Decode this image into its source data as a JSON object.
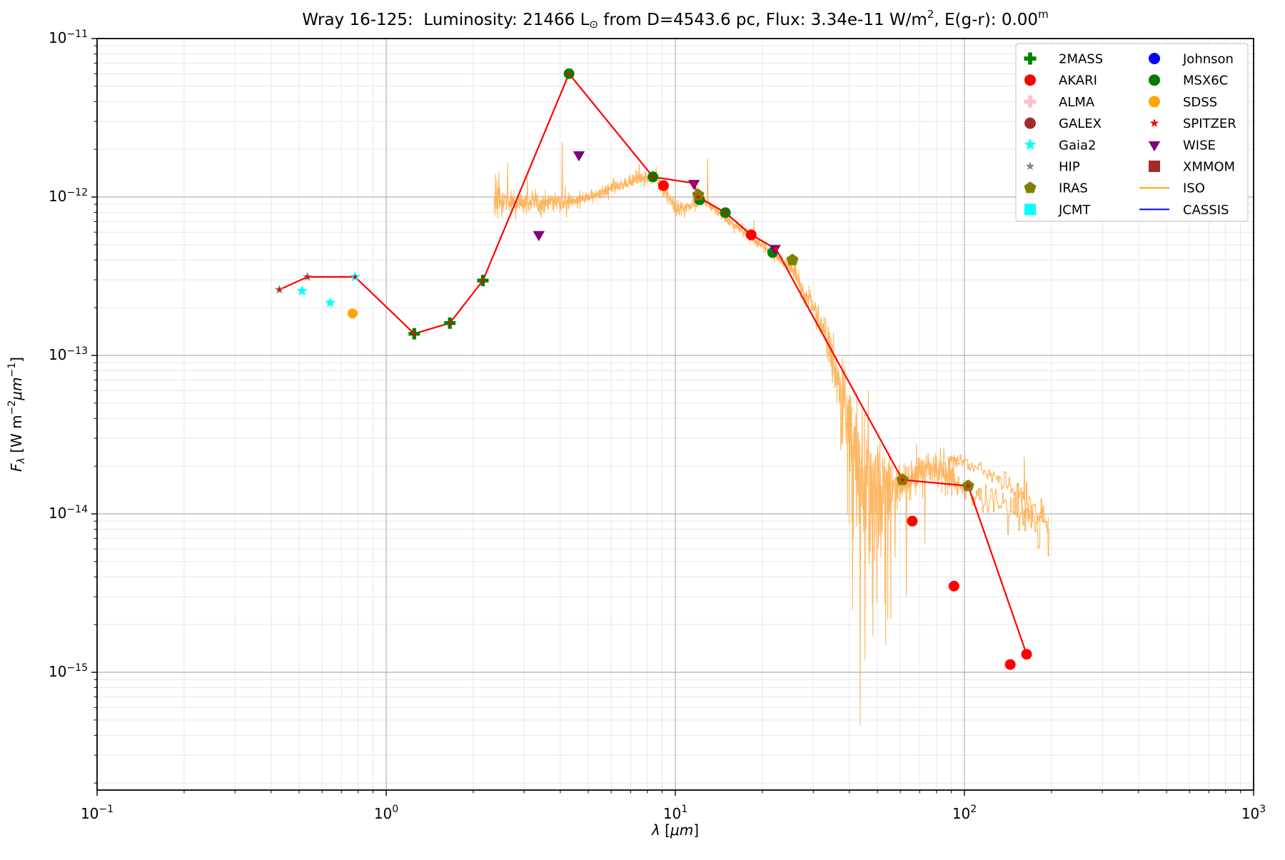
{
  "chart_data": {
    "type": "scatter",
    "title_parts": {
      "t1": "Wray 16-125:  Luminosity: 21466 L",
      "sun": "⊙",
      "t2": " from D=4543.6 pc, Flux: 3.34e-11 W/m",
      "sup2": "2",
      "t3": ", E(g-r): 0.00",
      "supm": "m"
    },
    "xlabel": {
      "sym": "λ",
      "pre": " [",
      "unit": "μm",
      "post": "]"
    },
    "ylabel": {
      "sym": "F",
      "sub": "λ",
      "u1": " [W m",
      "e1": "−2",
      "u2": "μm",
      "e2": "−1",
      "u3": "]"
    },
    "x_ticks": [
      -1,
      0,
      1,
      2,
      3
    ],
    "y_ticks": [
      -11,
      -12,
      -13,
      -14,
      -15
    ],
    "xlim": [
      0.1,
      1000
    ],
    "ylim": [
      1.8e-16,
      1e-11
    ],
    "grid": true,
    "legend_position": "upper right",
    "series": [
      {
        "name": "HIP",
        "marker": "star",
        "color": "#8a8a8a",
        "s": 7,
        "points": [
          [
            0.427,
            2.6e-13
          ],
          [
            0.534,
            3.13e-13
          ]
        ]
      },
      {
        "name": "Gaia2",
        "marker": "star",
        "color": "#00FFFF",
        "s": 8,
        "points": [
          [
            0.512,
            2.55e-13
          ],
          [
            0.64,
            2.15e-13
          ],
          [
            0.78,
            3.13e-13
          ]
        ]
      },
      {
        "name": "SDSS",
        "marker": "circle",
        "color": "#FFA500",
        "s": 7,
        "points": [
          [
            0.765,
            1.84e-13
          ]
        ]
      },
      {
        "name": "2MASS",
        "marker": "plus",
        "color": "#008000",
        "s": 8,
        "points": [
          [
            1.25,
            1.37e-13
          ],
          [
            1.66,
            1.6e-13
          ],
          [
            2.16,
            2.97e-13
          ]
        ]
      },
      {
        "name": "AKARI",
        "marker": "circle",
        "color": "#FF0000",
        "s": 7.5,
        "points": [
          [
            9.1,
            1.18e-12
          ],
          [
            18.3,
            5.77e-13
          ],
          [
            66,
            9e-15
          ],
          [
            92,
            3.5e-15
          ],
          [
            144,
            1.12e-15
          ],
          [
            164,
            1.3e-15
          ]
        ]
      },
      {
        "name": "MSX6C",
        "marker": "circle",
        "color": "#008000",
        "s": 7.5,
        "points": [
          [
            4.29,
            6e-12
          ],
          [
            8.37,
            1.34e-12
          ],
          [
            12.13,
            9.6e-13
          ],
          [
            14.9,
            7.96e-13
          ],
          [
            21.7,
            4.46e-13
          ]
        ]
      },
      {
        "name": "IRAS",
        "marker": "pentagon",
        "color": "#808000",
        "s": 9,
        "points": [
          [
            12.0,
            1.03e-12
          ],
          [
            25.4,
            4e-13
          ],
          [
            61.0,
            1.64e-14
          ],
          [
            103,
            1.5e-14
          ]
        ]
      },
      {
        "name": "WISE",
        "marker": "triangle-down",
        "color": "#800080",
        "s": 9.5,
        "points": [
          [
            3.37,
            5.8e-13
          ],
          [
            4.64,
            1.85e-12
          ],
          [
            11.6,
            1.22e-12
          ],
          [
            22.1,
            4.74e-13
          ]
        ]
      }
    ],
    "sed_line": {
      "name": "SED fit line",
      "color": "#FF0000",
      "width": 2.2,
      "dot_r": 2.6,
      "points": [
        [
          0.427,
          2.6e-13
        ],
        [
          0.534,
          3.13e-13
        ],
        [
          0.78,
          3.13e-13
        ],
        [
          1.25,
          1.37e-13
        ],
        [
          1.66,
          1.6e-13
        ],
        [
          2.16,
          2.97e-13
        ],
        [
          4.29,
          6e-12
        ],
        [
          8.37,
          1.34e-12
        ],
        [
          11.6,
          1.22e-12
        ],
        [
          12.0,
          1e-12
        ],
        [
          14.9,
          7.96e-13
        ],
        [
          18.3,
          5.77e-13
        ],
        [
          22.3,
          4.7e-13
        ],
        [
          61.0,
          1.64e-14
        ],
        [
          103,
          1.5e-14
        ],
        [
          164,
          1.3e-15
        ]
      ]
    },
    "iso_spectrum": {
      "name": "ISO",
      "color": "#FFAE4F",
      "width": 1.1,
      "seed": 71,
      "samples": 2200,
      "anchors": [
        [
          2.36,
          9.3e-13
        ],
        [
          2.8,
          9.2e-13
        ],
        [
          3.5,
          9.2e-13
        ],
        [
          4.2,
          9.4e-13
        ],
        [
          5.0,
          1e-12
        ],
        [
          6.0,
          1.12e-12
        ],
        [
          7.0,
          1.26e-12
        ],
        [
          7.8,
          1.33e-12
        ],
        [
          8.6,
          1.28e-12
        ],
        [
          9.3,
          1.05e-12
        ],
        [
          9.9,
          8.8e-13
        ],
        [
          10.5,
          8.4e-13
        ],
        [
          11.3,
          9e-13
        ],
        [
          12.2,
          9.6e-13
        ],
        [
          13.0,
          9.1e-13
        ],
        [
          14.0,
          8.1e-13
        ],
        [
          15.0,
          7.3e-13
        ],
        [
          16.5,
          6.4e-13
        ],
        [
          18.0,
          5.6e-13
        ],
        [
          20.0,
          4.9e-13
        ],
        [
          22.0,
          4.3e-13
        ],
        [
          24.0,
          3.8e-13
        ],
        [
          26.0,
          3.3e-13
        ],
        [
          28.0,
          2.4e-13
        ],
        [
          30.0,
          2.1e-13
        ],
        [
          33.0,
          1.35e-13
        ],
        [
          36.0,
          8e-14
        ],
        [
          40.0,
          3.8e-14
        ],
        [
          44.0,
          2.1e-14
        ],
        [
          48.0,
          1.6e-14
        ],
        [
          52.0,
          1.4e-14
        ],
        [
          58.0,
          1.5e-14
        ],
        [
          65.0,
          1.7e-14
        ],
        [
          72.0,
          1.9e-14
        ],
        [
          80.0,
          1.9e-14
        ],
        [
          90.0,
          1.75e-14
        ],
        [
          100.0,
          1.42e-14
        ],
        [
          110.0,
          1.3e-14
        ],
        [
          125.0,
          1.25e-14
        ],
        [
          140.0,
          1.15e-14
        ],
        [
          160.0,
          1e-14
        ],
        [
          180.0,
          8.8e-15
        ],
        [
          197.0,
          8.2e-15
        ]
      ],
      "noise_segments": [
        [
          2.36,
          2.55,
          0.06
        ],
        [
          2.55,
          4.3,
          0.035
        ],
        [
          4.3,
          8.5,
          0.022
        ],
        [
          8.5,
          12.5,
          0.028
        ],
        [
          12.5,
          25,
          0.018
        ],
        [
          25,
          33,
          0.04
        ],
        [
          33,
          37,
          0.07
        ],
        [
          37,
          56,
          0.26
        ],
        [
          56,
          95,
          0.06
        ],
        [
          95,
          140,
          0.04
        ],
        [
          140,
          200,
          0.1
        ]
      ],
      "asym_region": [
        37,
        56
      ],
      "spikes": [
        [
          2.39,
          1.4e-12
        ],
        [
          2.45,
          1.45e-12
        ],
        [
          2.63,
          1.65e-12
        ],
        [
          3.08,
          1.35e-12
        ],
        [
          4.06,
          2.2e-12
        ],
        [
          7.5,
          1.62e-12
        ],
        [
          12.95,
          1.76e-12
        ],
        [
          18.7,
          7.2e-13
        ],
        [
          41,
          2.5e-15
        ],
        [
          43.6,
          4.6e-16
        ],
        [
          45.3,
          1.2e-15
        ],
        [
          46.5,
          6e-14
        ],
        [
          57.5,
          5.3e-15
        ],
        [
          63,
          3e-15
        ],
        [
          73,
          6.5e-15
        ]
      ]
    },
    "iso_lws": {
      "name": "ISO LWS",
      "color": "#FFAE4F",
      "width": 1.1,
      "seed": 913,
      "samples": 420,
      "anchors": [
        [
          88,
          2.25e-14
        ],
        [
          100,
          2.1e-14
        ],
        [
          112,
          1.95e-14
        ],
        [
          125,
          1.75e-14
        ],
        [
          140,
          1.5e-14
        ],
        [
          158,
          1.25e-14
        ],
        [
          175,
          1.05e-14
        ],
        [
          190,
          9e-15
        ],
        [
          196,
          8.6e-15
        ]
      ],
      "noise_segments": [
        [
          88,
          130,
          0.02
        ],
        [
          130,
          160,
          0.035
        ],
        [
          160,
          200,
          0.06
        ]
      ],
      "spikes": [
        [
          161,
          2.3e-14
        ]
      ]
    },
    "legend": [
      {
        "label": "2MASS",
        "marker": "plus",
        "color": "#008000"
      },
      {
        "label": "AKARI",
        "marker": "circle",
        "color": "#FF0000"
      },
      {
        "label": "ALMA",
        "marker": "plus",
        "color": "#FFC0CB"
      },
      {
        "label": "GALEX",
        "marker": "circle",
        "color": "#A52A2A"
      },
      {
        "label": "Gaia2",
        "marker": "star",
        "color": "#00FFFF"
      },
      {
        "label": "HIP",
        "marker": "star-small",
        "color": "#8a8a8a"
      },
      {
        "label": "IRAS",
        "marker": "pentagon",
        "color": "#808000"
      },
      {
        "label": "JCMT",
        "marker": "square",
        "color": "#00FFFF"
      },
      {
        "label": "Johnson",
        "marker": "circle",
        "color": "#0000FF"
      },
      {
        "label": "MSX6C",
        "marker": "circle",
        "color": "#008000"
      },
      {
        "label": "SDSS",
        "marker": "circle",
        "color": "#FFA500"
      },
      {
        "label": "SPITZER",
        "marker": "star-small",
        "color": "#FF0000"
      },
      {
        "label": "WISE",
        "marker": "triangle-down",
        "color": "#800080"
      },
      {
        "label": "XMMOM",
        "marker": "square",
        "color": "#A52A2A"
      },
      {
        "label": "ISO",
        "marker": "line",
        "color": "#FFA500"
      },
      {
        "label": "CASSIS",
        "marker": "line",
        "color": "#0000FF"
      }
    ]
  }
}
